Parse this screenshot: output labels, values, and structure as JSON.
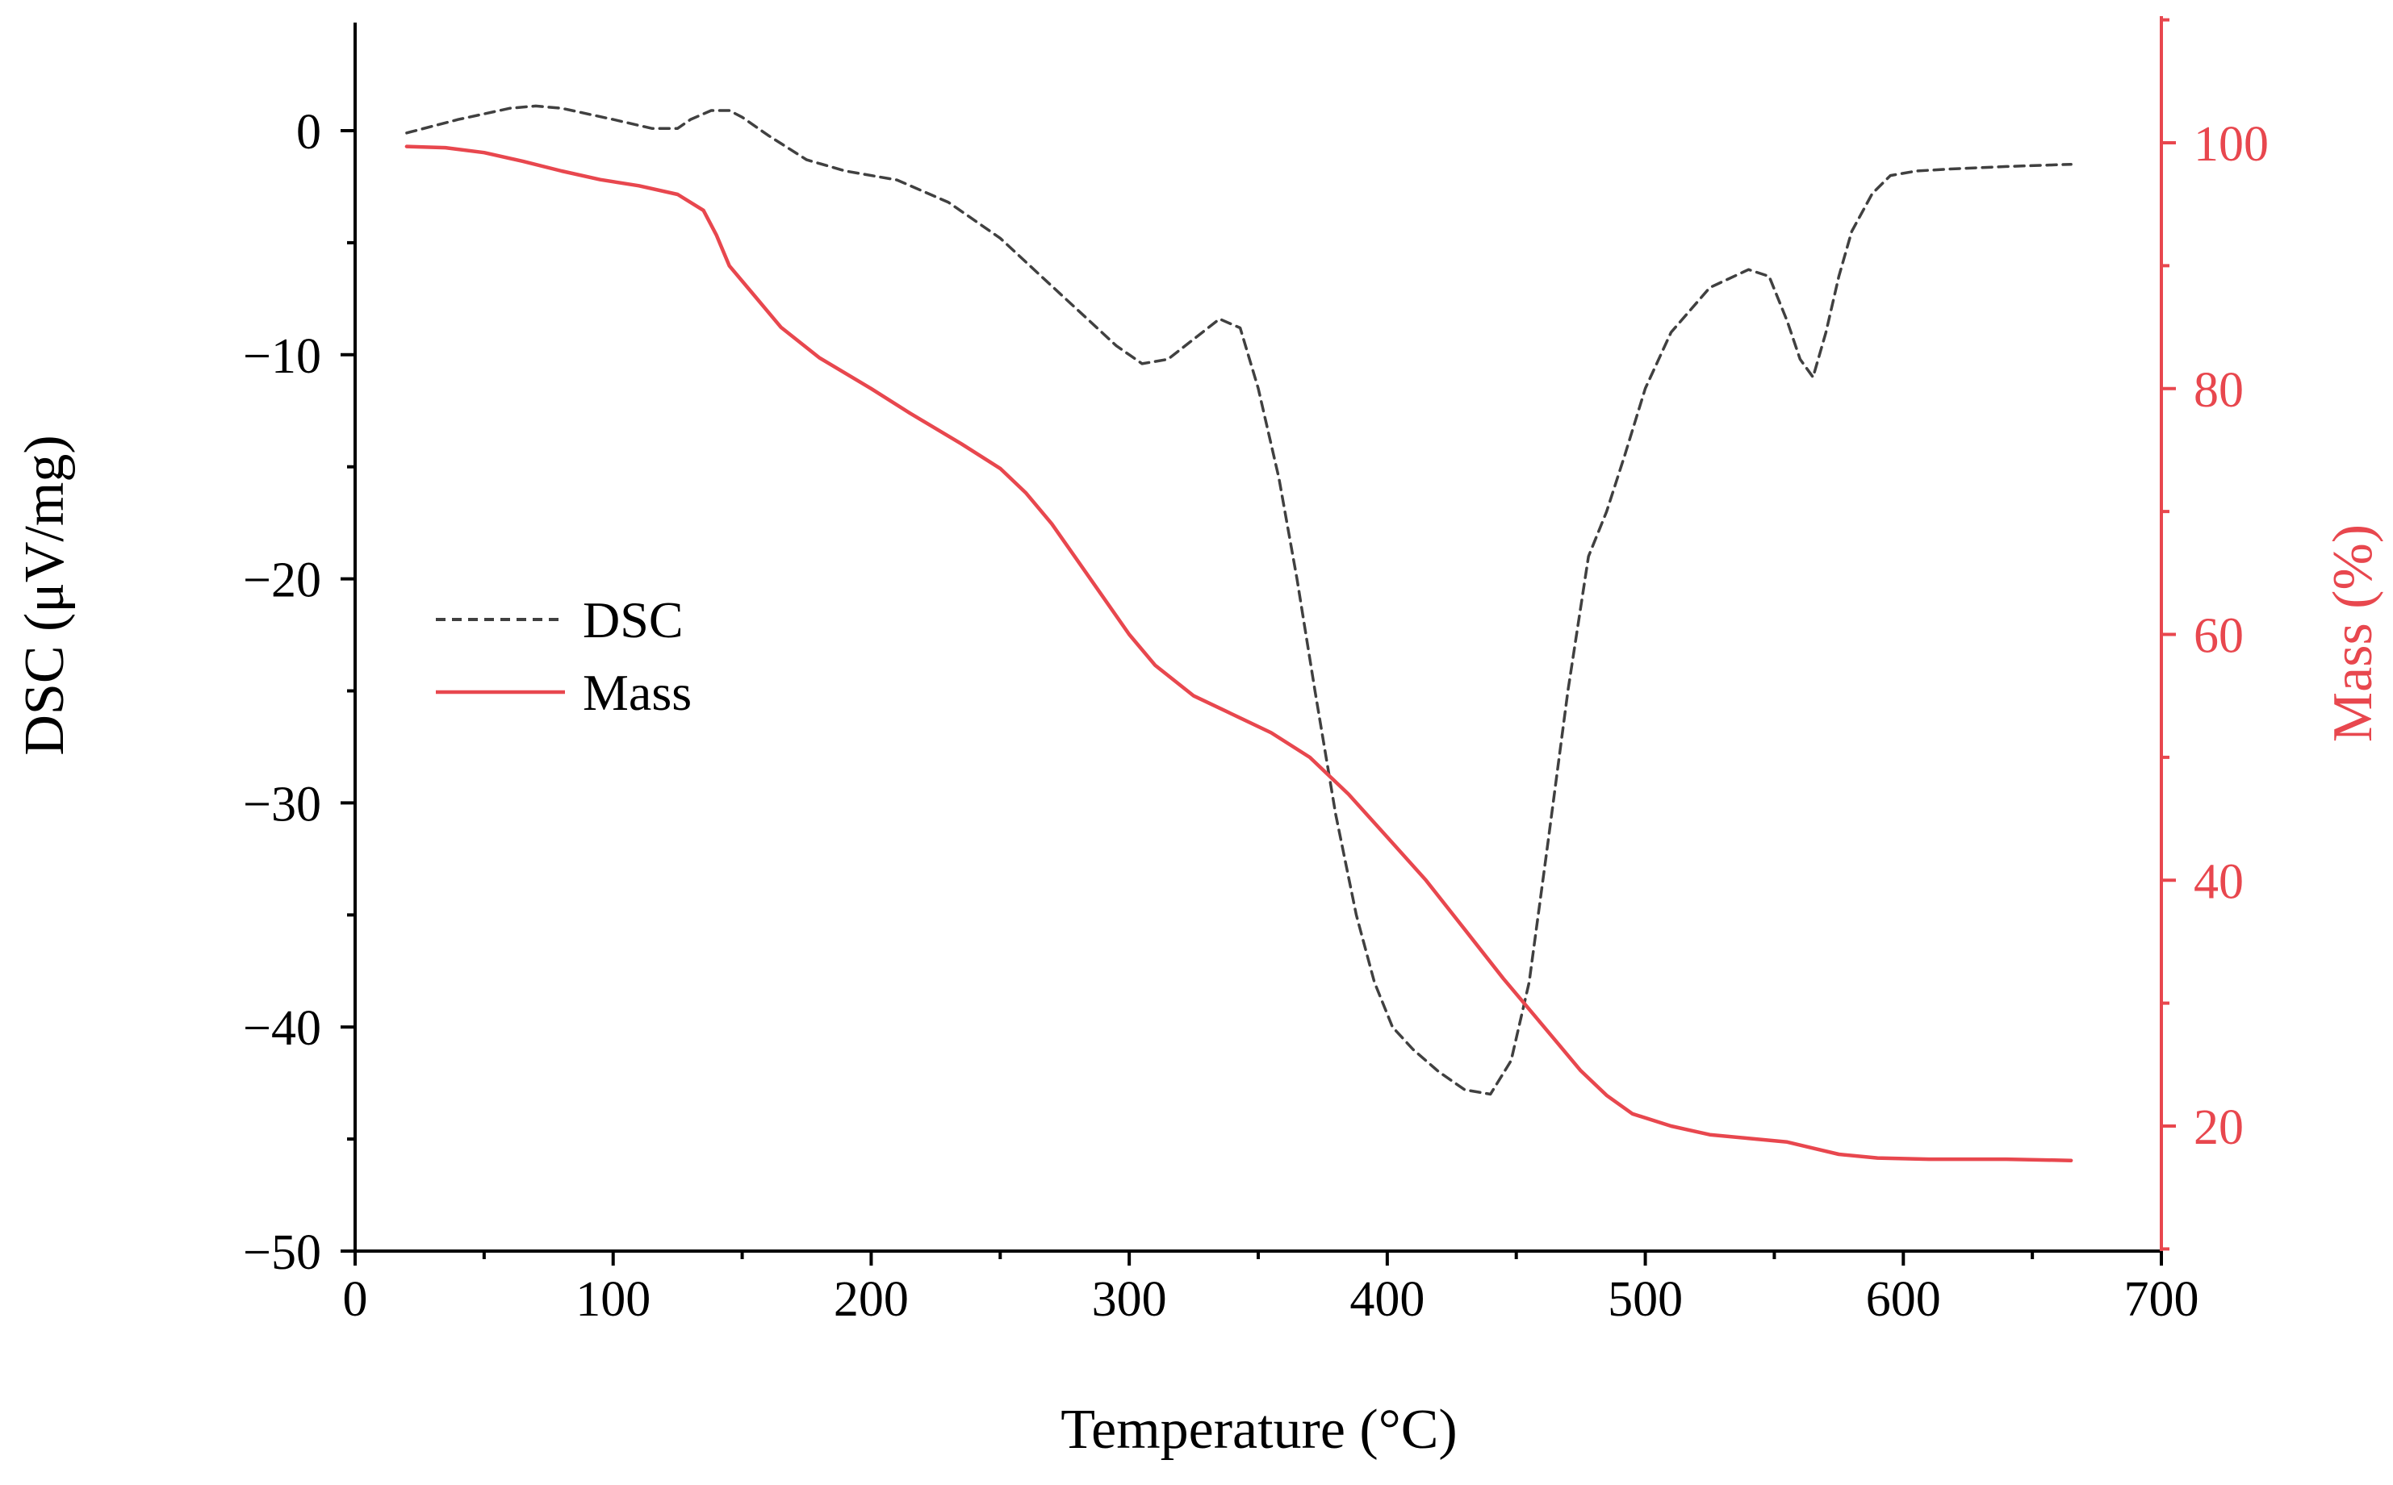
{
  "chart_data": {
    "type": "line",
    "title": "",
    "xlabel": "Temperature (°C)",
    "ylabel_left": "DSC (μV/mg)",
    "ylabel_right": "Mass (%)",
    "xlim": [
      0,
      700
    ],
    "ylim_left": [
      -50,
      5
    ],
    "ylim_right": [
      10,
      110
    ],
    "x_ticks": [
      0,
      100,
      200,
      300,
      400,
      500,
      600,
      700
    ],
    "x_tick_labels": [
      "0",
      "100",
      "200",
      "300",
      "400",
      "500",
      "600",
      "700"
    ],
    "y_left_ticks": [
      0,
      -10,
      -20,
      -30,
      -40,
      -50
    ],
    "y_left_tick_labels": [
      "0",
      "−10",
      "−20",
      "−30",
      "−40",
      "−50"
    ],
    "y_right_ticks": [
      20,
      40,
      60,
      80,
      100
    ],
    "y_right_tick_labels": [
      "20",
      "40",
      "60",
      "80",
      "100"
    ],
    "grid": false,
    "legend_position": "middle-left",
    "colors": {
      "dsc": "#404040",
      "mass": "#e8474e",
      "axis": "#000000"
    },
    "series": [
      {
        "name": "DSC",
        "axis": "left",
        "style": "dashed",
        "x": [
          20,
          40,
          60,
          70,
          80,
          100,
          115,
          125,
          130,
          138,
          145,
          150,
          160,
          175,
          190,
          210,
          230,
          250,
          265,
          280,
          295,
          305,
          315,
          325,
          335,
          343,
          350,
          358,
          365,
          372,
          380,
          388,
          395,
          402,
          410,
          420,
          430,
          440,
          448,
          455,
          462,
          470,
          478,
          485,
          492,
          500,
          510,
          525,
          540,
          548,
          555,
          560,
          565,
          570,
          575,
          580,
          588,
          595,
          605,
          620,
          640,
          665
        ],
        "values": [
          -0.1,
          0.5,
          1.0,
          1.1,
          1.0,
          0.5,
          0.1,
          0.1,
          0.5,
          0.9,
          0.9,
          0.6,
          -0.2,
          -1.3,
          -1.8,
          -2.2,
          -3.2,
          -4.8,
          -6.4,
          -8.0,
          -9.6,
          -10.4,
          -10.2,
          -9.3,
          -8.4,
          -8.8,
          -11.5,
          -15.5,
          -20.0,
          -25.0,
          -30.5,
          -35.0,
          -38.0,
          -40.0,
          -41.0,
          -42.0,
          -42.8,
          -43.0,
          -41.5,
          -38.0,
          -32.0,
          -25.0,
          -19.0,
          -17.0,
          -14.5,
          -11.5,
          -9.0,
          -7.0,
          -6.2,
          -6.5,
          -8.5,
          -10.2,
          -11.0,
          -9.0,
          -6.5,
          -4.5,
          -2.8,
          -2.0,
          -1.8,
          -1.7,
          -1.6,
          -1.5
        ]
      },
      {
        "name": "Mass",
        "axis": "right",
        "style": "solid",
        "x": [
          20,
          35,
          50,
          65,
          80,
          95,
          110,
          125,
          135,
          140,
          145,
          155,
          165,
          180,
          200,
          215,
          235,
          250,
          260,
          270,
          280,
          290,
          300,
          310,
          325,
          340,
          355,
          370,
          385,
          400,
          415,
          430,
          445,
          455,
          465,
          475,
          485,
          495,
          510,
          525,
          540,
          555,
          565,
          575,
          590,
          610,
          640,
          665
        ],
        "values": [
          99.7,
          99.6,
          99.2,
          98.5,
          97.7,
          97.0,
          96.5,
          95.8,
          94.5,
          92.5,
          90.0,
          87.5,
          85.0,
          82.5,
          80.0,
          78.0,
          75.5,
          73.5,
          71.5,
          69.0,
          66.0,
          63.0,
          60.0,
          57.5,
          55.0,
          53.5,
          52.0,
          50.0,
          47.0,
          43.5,
          40.0,
          36.0,
          32.0,
          29.5,
          27.0,
          24.5,
          22.5,
          21.0,
          20.0,
          19.3,
          19.0,
          18.7,
          18.2,
          17.7,
          17.4,
          17.3,
          17.3,
          17.2
        ]
      }
    ]
  }
}
